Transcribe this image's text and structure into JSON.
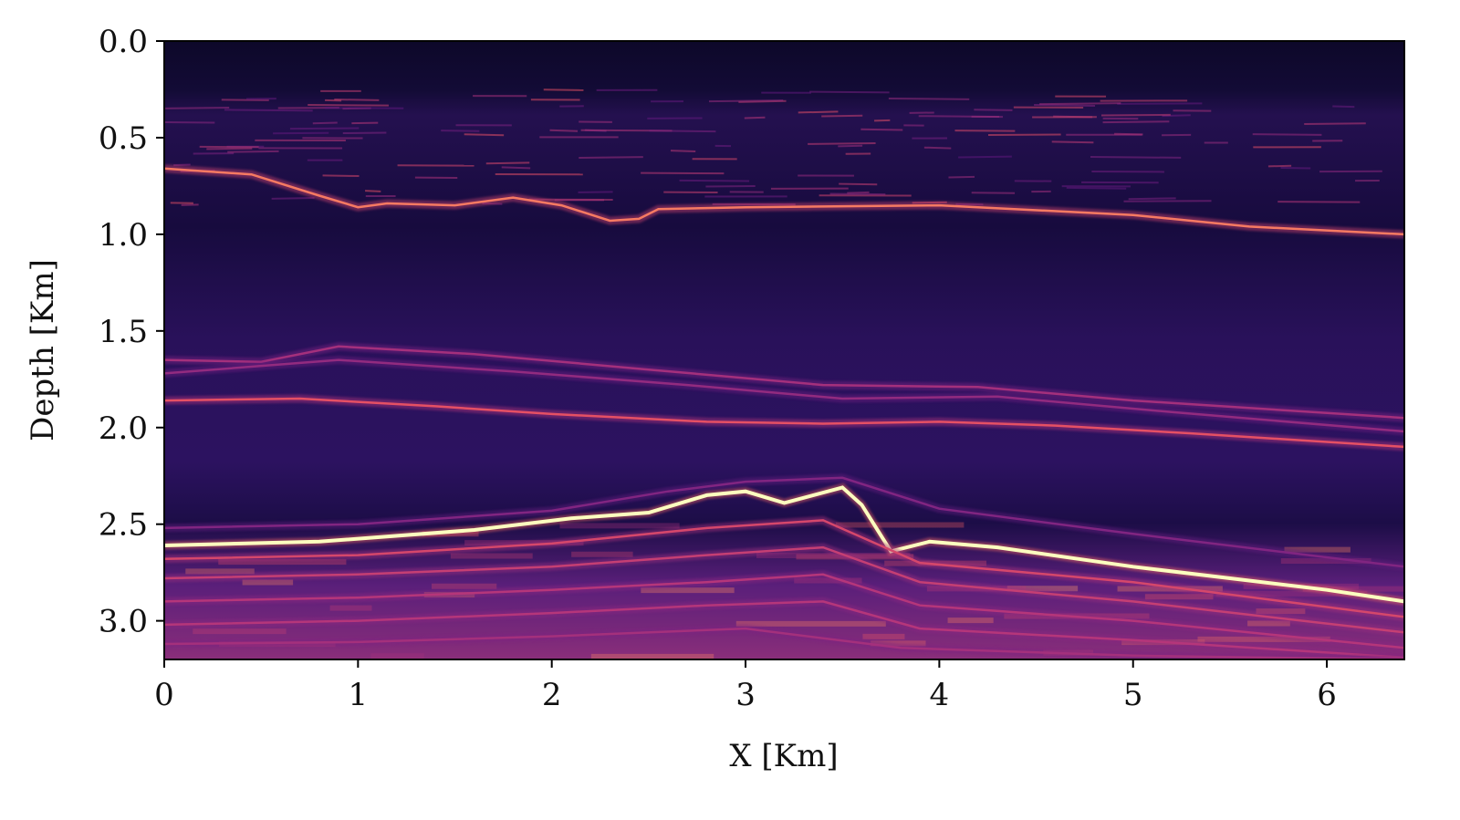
{
  "chart_data": {
    "type": "heatmap",
    "title": "",
    "xlabel": "X [Km]",
    "ylabel": "Depth [Km]",
    "xlim": [
      0,
      6.4
    ],
    "ylim": [
      3.2,
      0.0
    ],
    "y_axis_inverted": true,
    "colormap": "magma",
    "grid": false,
    "legend": "none",
    "x_ticks": [
      {
        "value": 0,
        "label": "0"
      },
      {
        "value": 1,
        "label": "1"
      },
      {
        "value": 2,
        "label": "2"
      },
      {
        "value": 3,
        "label": "3"
      },
      {
        "value": 4,
        "label": "4"
      },
      {
        "value": 5,
        "label": "5"
      },
      {
        "value": 6,
        "label": "6"
      }
    ],
    "y_ticks": [
      {
        "value": 0.0,
        "label": "0.0"
      },
      {
        "value": 0.5,
        "label": "0.5"
      },
      {
        "value": 1.0,
        "label": "1.0"
      },
      {
        "value": 1.5,
        "label": "1.5"
      },
      {
        "value": 2.0,
        "label": "2.0"
      },
      {
        "value": 2.5,
        "label": "2.5"
      },
      {
        "value": 3.0,
        "label": "3.0"
      }
    ],
    "reflectors": [
      {
        "intensity": 0.85,
        "points": [
          [
            0,
            0.66
          ],
          [
            0.45,
            0.69
          ],
          [
            0.8,
            0.8
          ],
          [
            1.0,
            0.86
          ],
          [
            1.15,
            0.84
          ],
          [
            1.5,
            0.85
          ],
          [
            1.8,
            0.81
          ],
          [
            2.05,
            0.85
          ],
          [
            2.3,
            0.93
          ],
          [
            2.45,
            0.92
          ],
          [
            2.55,
            0.87
          ],
          [
            3.0,
            0.86
          ],
          [
            4.0,
            0.85
          ],
          [
            5.0,
            0.9
          ],
          [
            5.6,
            0.96
          ],
          [
            6.4,
            1.0
          ]
        ]
      },
      {
        "intensity": 0.55,
        "points": [
          [
            0,
            1.65
          ],
          [
            0.5,
            1.66
          ],
          [
            0.9,
            1.58
          ],
          [
            1.6,
            1.62
          ],
          [
            2.5,
            1.7
          ],
          [
            3.4,
            1.78
          ],
          [
            4.2,
            1.79
          ],
          [
            5.0,
            1.86
          ],
          [
            6.4,
            1.95
          ]
        ]
      },
      {
        "intensity": 0.5,
        "points": [
          [
            0,
            1.72
          ],
          [
            0.9,
            1.65
          ],
          [
            1.8,
            1.71
          ],
          [
            2.7,
            1.78
          ],
          [
            3.5,
            1.85
          ],
          [
            4.3,
            1.84
          ],
          [
            5.2,
            1.92
          ],
          [
            6.4,
            2.02
          ]
        ]
      },
      {
        "intensity": 0.75,
        "points": [
          [
            0,
            1.86
          ],
          [
            0.7,
            1.85
          ],
          [
            1.4,
            1.89
          ],
          [
            2.0,
            1.93
          ],
          [
            2.8,
            1.97
          ],
          [
            3.4,
            1.98
          ],
          [
            4.0,
            1.97
          ],
          [
            4.6,
            1.99
          ],
          [
            5.3,
            2.03
          ],
          [
            6.4,
            2.1
          ]
        ]
      },
      {
        "intensity": 0.45,
        "points": [
          [
            0,
            2.52
          ],
          [
            1.0,
            2.5
          ],
          [
            2.0,
            2.43
          ],
          [
            2.6,
            2.33
          ],
          [
            3.0,
            2.28
          ],
          [
            3.5,
            2.26
          ],
          [
            4.0,
            2.42
          ],
          [
            5.0,
            2.55
          ],
          [
            6.4,
            2.72
          ]
        ]
      },
      {
        "intensity": 1.0,
        "points": [
          [
            0,
            2.61
          ],
          [
            0.8,
            2.59
          ],
          [
            1.6,
            2.53
          ],
          [
            2.1,
            2.47
          ],
          [
            2.5,
            2.44
          ],
          [
            2.8,
            2.35
          ],
          [
            3.0,
            2.33
          ],
          [
            3.2,
            2.39
          ],
          [
            3.5,
            2.31
          ],
          [
            3.6,
            2.4
          ],
          [
            3.75,
            2.64
          ],
          [
            3.95,
            2.59
          ],
          [
            4.3,
            2.62
          ],
          [
            5.0,
            2.72
          ],
          [
            6.0,
            2.84
          ],
          [
            6.4,
            2.9
          ]
        ]
      },
      {
        "intensity": 0.7,
        "points": [
          [
            0,
            2.68
          ],
          [
            1.0,
            2.66
          ],
          [
            2.0,
            2.6
          ],
          [
            2.8,
            2.52
          ],
          [
            3.4,
            2.48
          ],
          [
            3.9,
            2.7
          ],
          [
            5.0,
            2.8
          ],
          [
            6.4,
            2.98
          ]
        ]
      },
      {
        "intensity": 0.65,
        "points": [
          [
            0,
            2.78
          ],
          [
            1.0,
            2.76
          ],
          [
            2.0,
            2.72
          ],
          [
            2.8,
            2.66
          ],
          [
            3.4,
            2.62
          ],
          [
            3.9,
            2.8
          ],
          [
            5.0,
            2.9
          ],
          [
            6.4,
            3.06
          ]
        ]
      },
      {
        "intensity": 0.6,
        "points": [
          [
            0,
            2.9
          ],
          [
            1.0,
            2.88
          ],
          [
            2.0,
            2.84
          ],
          [
            2.8,
            2.8
          ],
          [
            3.4,
            2.76
          ],
          [
            3.9,
            2.92
          ],
          [
            5.0,
            3.0
          ],
          [
            6.4,
            3.14
          ]
        ]
      },
      {
        "intensity": 0.6,
        "points": [
          [
            0,
            3.02
          ],
          [
            1.0,
            3.0
          ],
          [
            2.0,
            2.96
          ],
          [
            2.8,
            2.92
          ],
          [
            3.4,
            2.9
          ],
          [
            3.9,
            3.04
          ],
          [
            5.0,
            3.1
          ],
          [
            6.4,
            3.19
          ]
        ]
      },
      {
        "intensity": 0.55,
        "points": [
          [
            0,
            3.12
          ],
          [
            1.0,
            3.11
          ],
          [
            2.0,
            3.08
          ],
          [
            3.0,
            3.04
          ],
          [
            3.8,
            3.14
          ],
          [
            5.0,
            3.18
          ],
          [
            6.4,
            3.2
          ]
        ]
      }
    ]
  }
}
